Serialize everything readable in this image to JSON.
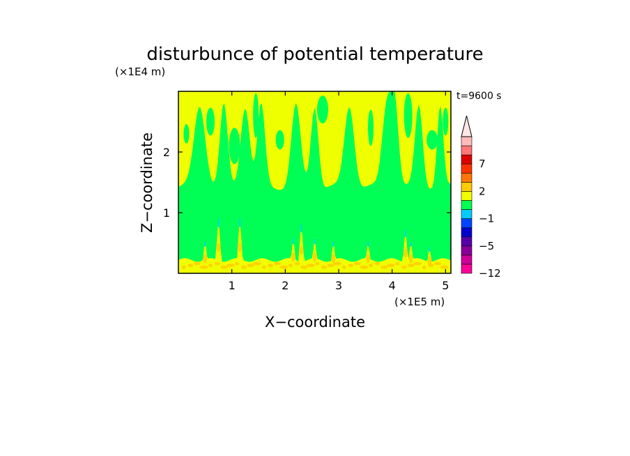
{
  "chart_data": {
    "type": "heatmap",
    "title": "disturbunce of potential temperature",
    "time_label": "t=9600 s",
    "xlabel": "X−coordinate",
    "ylabel": "Z−coordinate",
    "x_unit": "(×1E5 m)",
    "y_unit": "(×1E4 m)",
    "xlim": [
      0,
      5.1
    ],
    "ylim": [
      0,
      3.0
    ],
    "x_ticks": [
      1,
      2,
      3,
      4,
      5
    ],
    "x_tick_labels": [
      "1",
      "2",
      "3",
      "4",
      "5"
    ],
    "y_ticks": [
      1,
      2
    ],
    "y_tick_labels": [
      "1",
      "2"
    ],
    "background_color": "#00FF55",
    "upper_layer": {
      "color": "#F0FF00",
      "mean_base": 1.42,
      "plume_centers": [
        0.4,
        0.85,
        1.25,
        1.55,
        2.2,
        2.55,
        3.2,
        3.9,
        4.05,
        4.5,
        4.9
      ],
      "plume_widths": [
        0.15,
        0.1,
        0.12,
        0.1,
        0.12,
        0.1,
        0.13,
        0.12,
        0.1,
        0.1,
        0.08
      ]
    },
    "lower_layer": {
      "color": "#F0FF00",
      "top": 0.22,
      "spike_centers": [
        0.5,
        0.75,
        1.15,
        2.15,
        2.3,
        2.55,
        2.9,
        3.55,
        4.25,
        4.35,
        4.7
      ],
      "spike_heights": [
        0.55,
        0.95,
        0.95,
        0.6,
        0.85,
        0.6,
        0.55,
        0.55,
        0.75,
        0.55,
        0.45
      ]
    },
    "colorbar": {
      "levels": [
        -12,
        -9,
        -7,
        -5,
        -3,
        -2,
        -1,
        0,
        1,
        2,
        3,
        5,
        7,
        9,
        11
      ],
      "colors": [
        "#FF0099",
        "#CC0099",
        "#880099",
        "#5500AA",
        "#0000CC",
        "#0044FF",
        "#00CCFF",
        "#00FF55",
        "#F0FF00",
        "#FFCC00",
        "#FF7700",
        "#FF3300",
        "#DD0000",
        "#FF7777",
        "#FFBBBB"
      ],
      "tick_values": [
        7,
        2,
        -1,
        -5,
        -12
      ],
      "tick_labels": [
        "7",
        "2",
        "−1",
        "−5",
        "−12"
      ],
      "extend": "max"
    }
  }
}
